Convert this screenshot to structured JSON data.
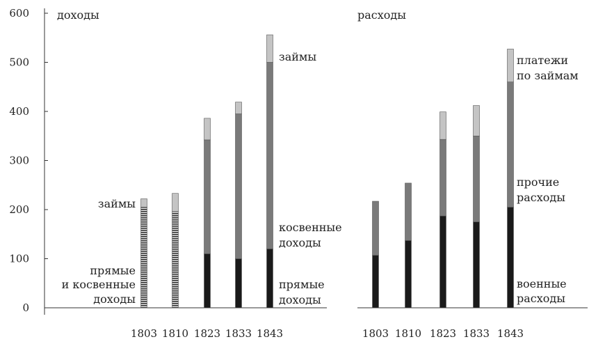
{
  "chart_data": [
    {
      "type": "bar",
      "stacked": true,
      "title": "доходы",
      "categories": [
        "1803",
        "1810",
        "1823",
        "1833",
        "1843"
      ],
      "ylim": [
        0,
        600
      ],
      "yticks": [
        0,
        100,
        200,
        300,
        400,
        500,
        600
      ],
      "bar_totals": [
        222,
        233,
        386,
        419,
        556
      ],
      "series": [
        {
          "key": "direct",
          "values": [
            0,
            0,
            110,
            100,
            120
          ],
          "color": "#1a1a1a"
        },
        {
          "key": "indirect",
          "values": [
            0,
            0,
            232,
            295,
            380
          ],
          "color": "#7a7a7a"
        },
        {
          "key": "combined",
          "values": [
            205,
            196,
            0,
            0,
            0
          ],
          "color": "#7a7a7a",
          "pattern": "horizontal-hatch"
        },
        {
          "key": "loans",
          "values": [
            17,
            37,
            44,
            24,
            56
          ],
          "color": "#c4c4c4"
        }
      ],
      "annotations": {
        "loans_left": "займы",
        "combined_lines": [
          "прямые",
          "и косвенные",
          "доходы"
        ],
        "loans_right": "займы",
        "indirect_lines": [
          "косвенные",
          "доходы"
        ],
        "direct_lines": [
          "прямые",
          "доходы"
        ]
      }
    },
    {
      "type": "bar",
      "stacked": true,
      "title": "расходы",
      "categories": [
        "1803",
        "1810",
        "1823",
        "1833",
        "1843"
      ],
      "ylim": [
        0,
        600
      ],
      "bar_totals": [
        217,
        254,
        399,
        412,
        527
      ],
      "series": [
        {
          "key": "military",
          "values": [
            107,
            137,
            187,
            175,
            205
          ],
          "color": "#1a1a1a"
        },
        {
          "key": "other",
          "values": [
            110,
            117,
            156,
            175,
            255
          ],
          "color": "#7a7a7a"
        },
        {
          "key": "debt_payments",
          "values": [
            0,
            0,
            56,
            62,
            67
          ],
          "color": "#c4c4c4"
        }
      ],
      "annotations": {
        "debt_lines": [
          "платежи",
          "по займам"
        ],
        "other_lines": [
          "прочие",
          "расходы"
        ],
        "military_lines": [
          "военные",
          "расходы"
        ]
      }
    }
  ]
}
